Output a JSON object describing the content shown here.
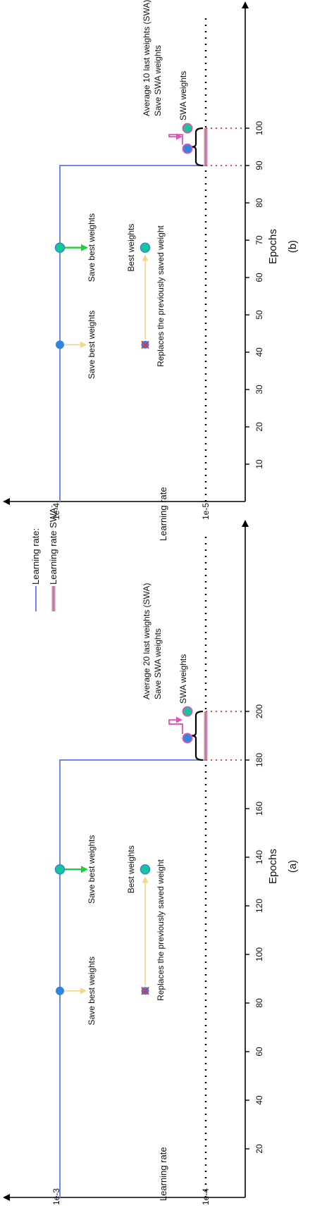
{
  "legend": {
    "learning_rate_label": "Learning rate:",
    "learning_rate_swa_label": "Learning rate SWA:"
  },
  "colors": {
    "lr_line": "#6f86f2",
    "swa_line_outer": "#f08a8a",
    "swa_line_inner": "#6f86f2",
    "dotted_marker": "#27c89a",
    "save_point": "#2e86e0",
    "best_point": "#13c79a",
    "replaced_point": "#e0344a",
    "green_arrow": "#1fcf3d",
    "yellow_arrow": "#f4d58a",
    "pink_arrow": "#e64fb6",
    "dotted_red": "#e34b4b",
    "axis": "#000000"
  },
  "panels": [
    {
      "caption": "(a)",
      "xlabel": "Epochs",
      "ylabel": "Learning rate",
      "y_tick_high": "1e-3",
      "y_tick_low": "1e-4",
      "x_ticks": [
        "20",
        "40",
        "60",
        "80",
        "100",
        "120",
        "140",
        "160",
        "180",
        "200"
      ],
      "x_max_tick": 200,
      "lr_drop_epoch": 180,
      "swa_end_epoch": 200,
      "save_epochs": [
        85,
        135
      ],
      "save_label": "Save best weights",
      "best_label": "Best weights",
      "replaced_epoch": 85,
      "best_epoch": 135,
      "replaces_label": "Replaces the previously saved weight",
      "swa_save_label": "Save SWA weights",
      "swa_avg_label": "Average 20 last weights (SWA)",
      "swa_weights_label": "SWA weights"
    },
    {
      "caption": "(b)",
      "xlabel": "Epochs",
      "ylabel": "Learning rate",
      "y_tick_high": "1e-4",
      "y_tick_low": "1e-5",
      "x_ticks": [
        "10",
        "20",
        "30",
        "40",
        "50",
        "60",
        "70",
        "80",
        "90",
        "100"
      ],
      "x_max_tick": 100,
      "lr_drop_epoch": 90,
      "swa_end_epoch": 100,
      "save_epochs": [
        42,
        68
      ],
      "save_label": "Save best weights",
      "best_label": "Best weights",
      "replaced_epoch": 42,
      "best_epoch": 68,
      "replaces_label": "Replaces the previously saved weight",
      "swa_save_label": "Save SWA weights",
      "swa_avg_label": "Average 10 last weights (SWA)",
      "swa_weights_label": "SWA weights"
    }
  ]
}
